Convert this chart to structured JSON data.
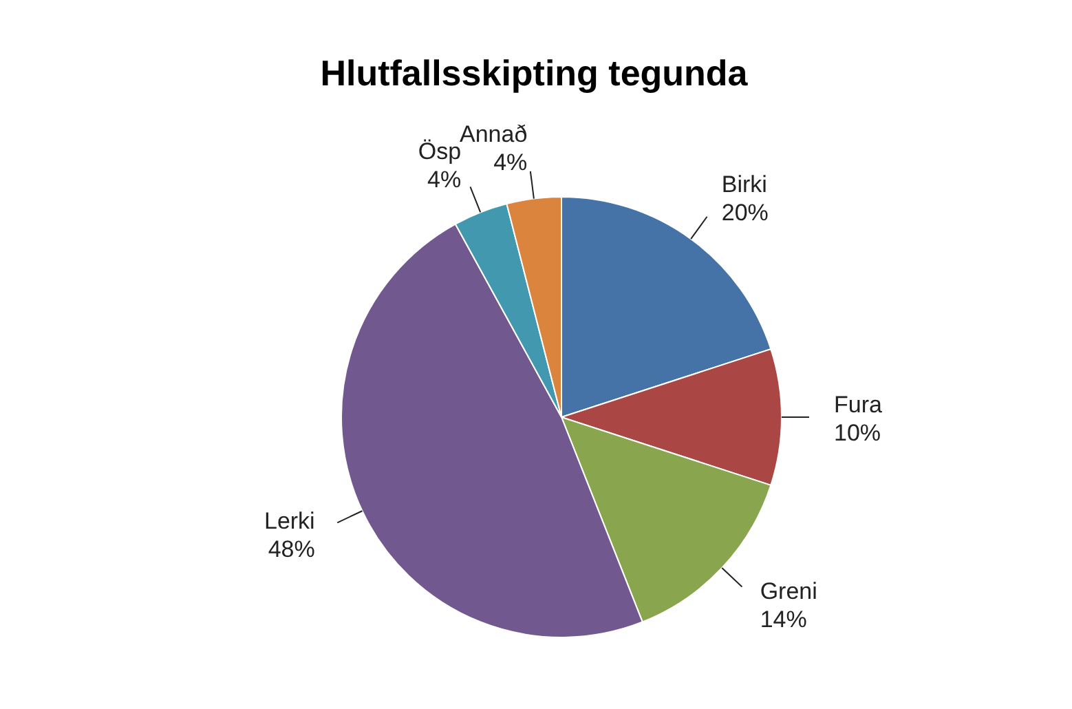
{
  "chart_data": {
    "type": "pie",
    "title": "Hlutfallsskipting tegunda",
    "categories": [
      "Birki",
      "Fura",
      "Greni",
      "Lerki",
      "Ösp",
      "Annað"
    ],
    "values": [
      20,
      10,
      14,
      48,
      4,
      4
    ],
    "colors": [
      "#4572a7",
      "#aa4643",
      "#89a54e",
      "#71588f",
      "#4198af",
      "#db843d"
    ],
    "value_labels": [
      "20%",
      "10%",
      "14%",
      "48%",
      "4%",
      "4%"
    ]
  }
}
